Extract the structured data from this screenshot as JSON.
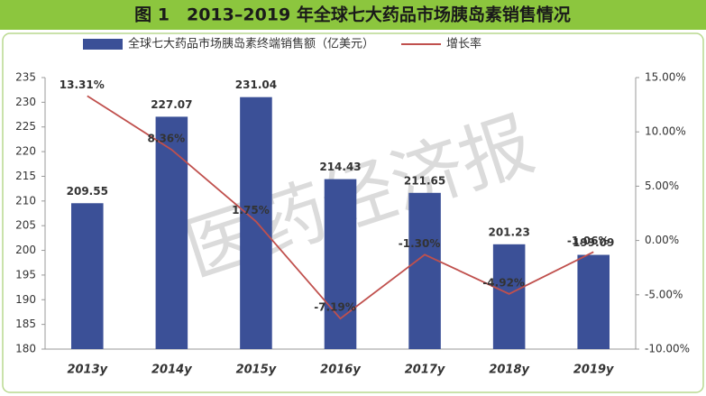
{
  "chart_data": {
    "type": "bar",
    "title": "图 1　2013–2019 年全球七大药品市场胰岛素销售情况",
    "watermark": "医药经济报",
    "categories": [
      "2013y",
      "2014y",
      "2015y",
      "2016y",
      "2017y",
      "2018y",
      "2019y"
    ],
    "series": [
      {
        "name": "全球七大药品市场胰岛素终端销售额（亿美元）",
        "type": "bar",
        "color": "#3b5097",
        "values": [
          209.55,
          227.07,
          231.04,
          214.43,
          211.65,
          201.23,
          199.09
        ]
      },
      {
        "name": "增长率",
        "type": "line",
        "axis": "y2",
        "color": "#c0504d",
        "values": [
          13.31,
          8.36,
          1.75,
          -7.19,
          -1.3,
          -4.92,
          -1.06
        ],
        "value_labels": [
          "13.31%",
          "8.36%",
          "1.75%",
          "-7.19%",
          "-1.30%",
          "-4.92%",
          "-1.06%"
        ]
      }
    ],
    "ylim": [
      180,
      235
    ],
    "yticks": [
      180,
      185,
      190,
      195,
      200,
      205,
      210,
      215,
      220,
      225,
      230,
      235
    ],
    "y2lim": [
      -10,
      15
    ],
    "y2ticks": [
      {
        "value": -10,
        "label": "-10.00%"
      },
      {
        "value": -5,
        "label": "-5.00%"
      },
      {
        "value": 0,
        "label": "0.00%"
      },
      {
        "value": 5,
        "label": "5.00%"
      },
      {
        "value": 10,
        "label": "10.00%"
      },
      {
        "value": 15,
        "label": "15.00%"
      }
    ],
    "legend": "top",
    "grid": false
  }
}
